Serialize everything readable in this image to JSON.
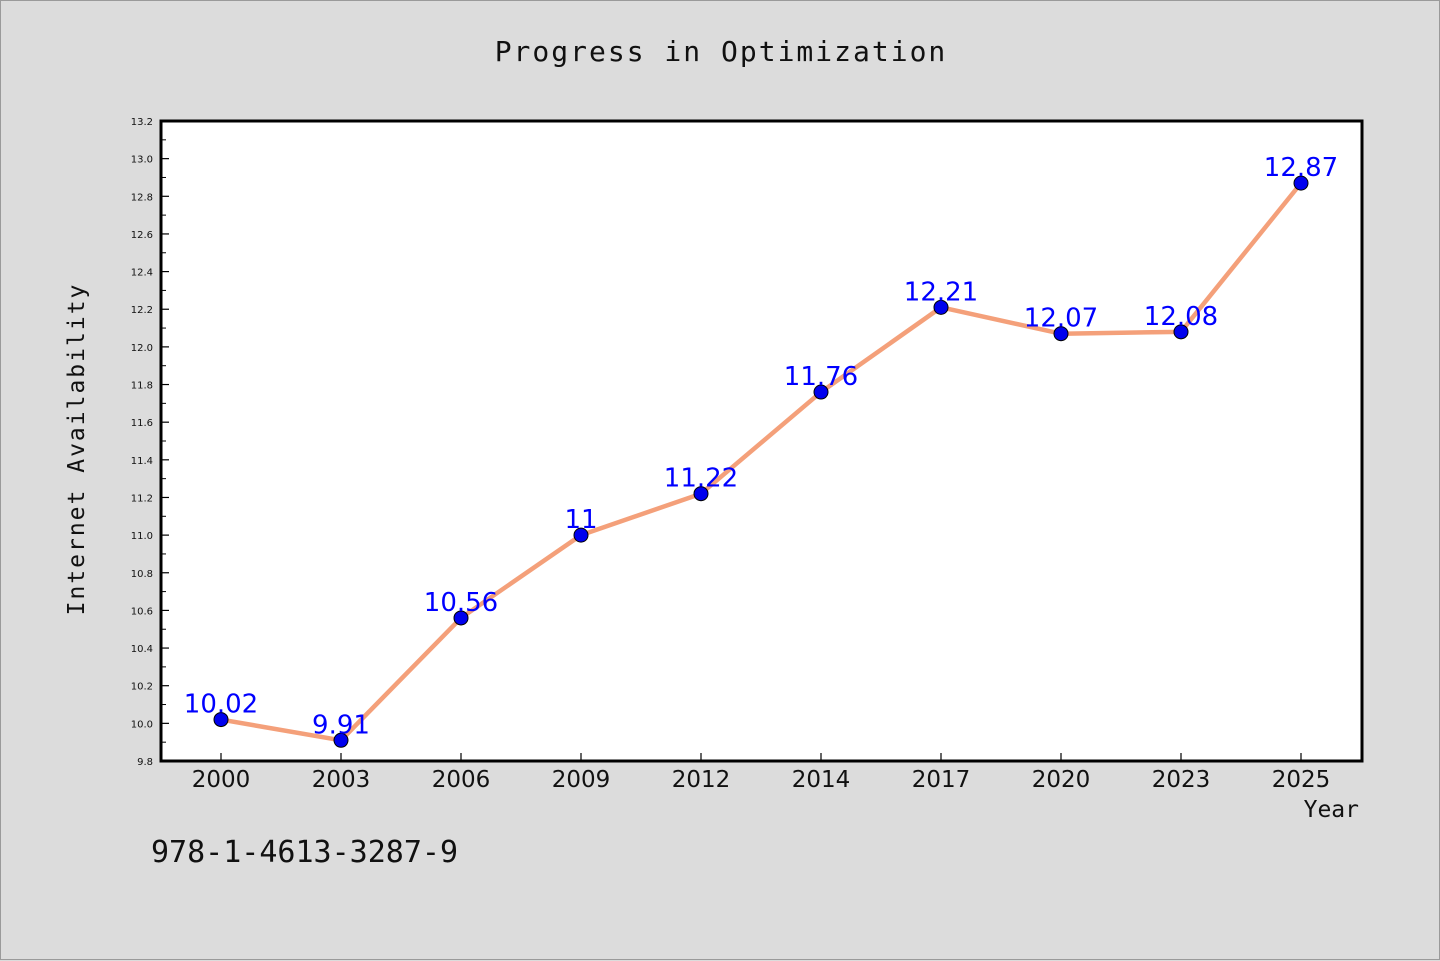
{
  "chart_data": {
    "type": "line",
    "title": "Progress in Optimization",
    "xlabel": "Year",
    "ylabel": "Internet Availability",
    "categories": [
      "2000",
      "2003",
      "2006",
      "2009",
      "2012",
      "2014",
      "2017",
      "2020",
      "2023",
      "2025"
    ],
    "series": [
      {
        "values": [
          10.02,
          9.91,
          10.56,
          11,
          11.22,
          11.76,
          12.21,
          12.07,
          12.08,
          12.87
        ],
        "data_labels": [
          "10.02",
          "9.91",
          "10.56",
          "11",
          "11.22",
          "11.76",
          "12.21",
          "12.07",
          "12.08",
          "12.87"
        ],
        "line_color": "#f4a07a",
        "marker_color": "#0000ee"
      }
    ],
    "ylim": [
      9.8,
      13.2
    ],
    "yticks": [
      "9.8",
      "10.0",
      "10.2",
      "10.4",
      "10.6",
      "10.8",
      "11.0",
      "11.2",
      "11.4",
      "11.6",
      "11.8",
      "12.0",
      "12.2",
      "12.4",
      "12.6",
      "12.8",
      "13.0",
      "13.2"
    ],
    "grid": false,
    "legend": "none"
  },
  "footer": {
    "isbn": "978-1-4613-3287-9"
  },
  "colors": {
    "background": "#dcdcdc",
    "plot_background": "#ffffff",
    "data_label": "#0000ff"
  }
}
